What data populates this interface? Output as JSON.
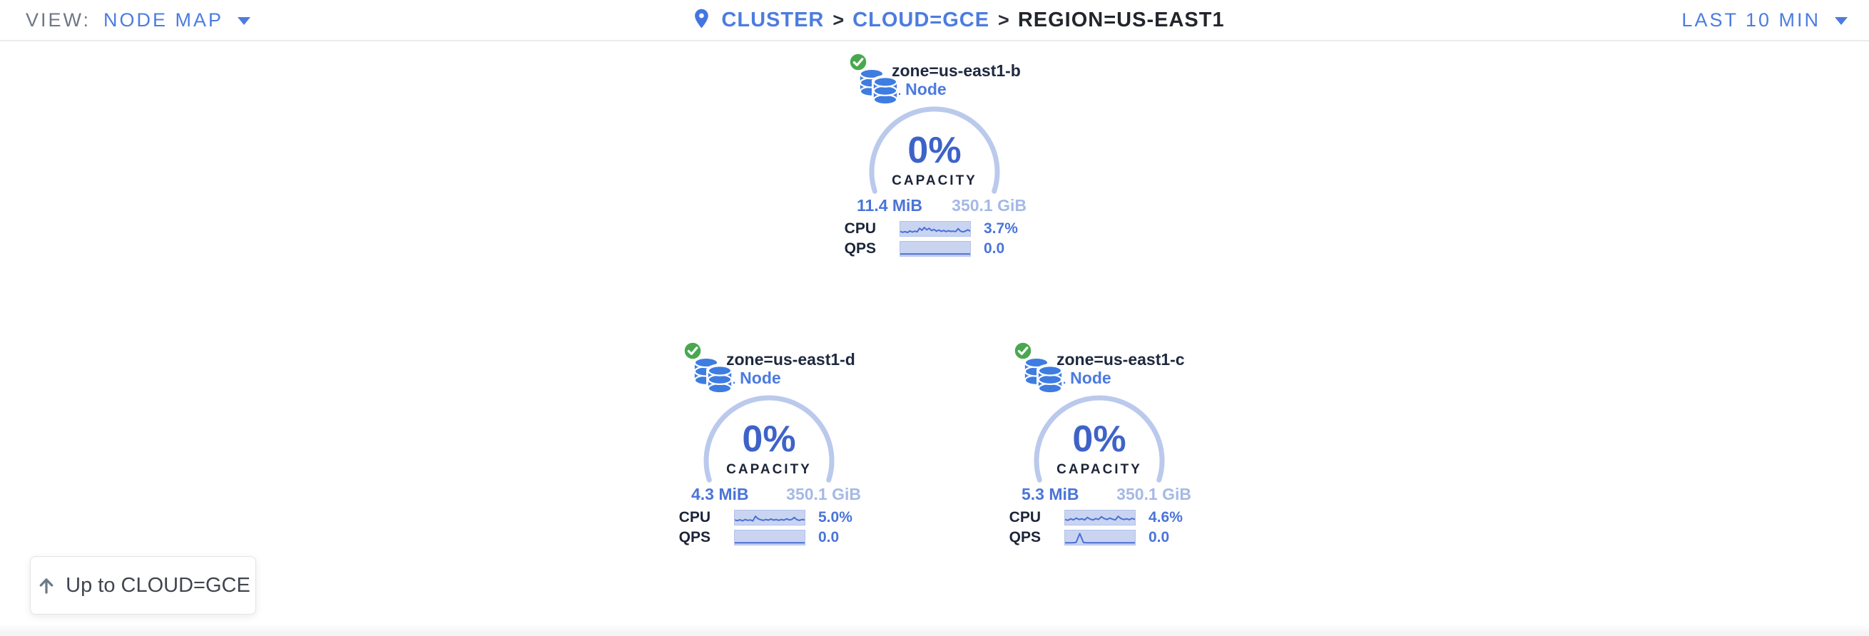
{
  "topbar": {
    "view_label": "VIEW:",
    "view_value": "NODE MAP",
    "breadcrumb": {
      "separator": ">",
      "items": [
        {
          "label": "CLUSTER"
        },
        {
          "label": "CLOUD=GCE"
        },
        {
          "label": "REGION=US-EAST1"
        }
      ]
    },
    "time_range": "LAST 10 MIN"
  },
  "zones": [
    {
      "name": "zone=us-east1-b",
      "node_count": "1 Node",
      "status": "healthy",
      "capacity_pct": "0%",
      "capacity_label": "CAPACITY",
      "capacity_used": "11.4 MiB",
      "capacity_total": "350.1 GiB",
      "cpu_label": "CPU",
      "cpu_value": "3.7%",
      "qps_label": "QPS",
      "qps_value": "0.0",
      "cpu_spark": [
        0.28,
        0.2,
        0.26,
        0.18,
        0.32,
        0.22,
        0.3,
        0.24,
        0.55,
        0.38,
        0.62,
        0.42,
        0.55,
        0.35,
        0.45,
        0.3,
        0.4,
        0.28,
        0.36,
        0.26,
        0.34,
        0.28,
        0.3,
        0.26,
        0.52,
        0.3,
        0.24,
        0.3,
        0.42,
        0.3
      ],
      "qps_spark": [
        0.05,
        0.05,
        0.05,
        0.05,
        0.05,
        0.05,
        0.05,
        0.05,
        0.05,
        0.05
      ]
    },
    {
      "name": "zone=us-east1-d",
      "node_count": "1 Node",
      "status": "healthy",
      "capacity_pct": "0%",
      "capacity_label": "CAPACITY",
      "capacity_used": "4.3 MiB",
      "capacity_total": "350.1 GiB",
      "cpu_label": "CPU",
      "cpu_value": "5.0%",
      "qps_label": "QPS",
      "qps_value": "0.0",
      "cpu_spark": [
        0.3,
        0.24,
        0.32,
        0.22,
        0.34,
        0.26,
        0.3,
        0.22,
        0.62,
        0.4,
        0.32,
        0.26,
        0.34,
        0.28,
        0.38,
        0.28,
        0.34,
        0.26,
        0.34,
        0.28,
        0.4,
        0.3,
        0.34,
        0.52,
        0.32,
        0.26,
        0.34,
        0.3
      ],
      "qps_spark": [
        0.05,
        0.05,
        0.05,
        0.05,
        0.05,
        0.05,
        0.05,
        0.05,
        0.05,
        0.05
      ]
    },
    {
      "name": "zone=us-east1-c",
      "node_count": "1 Node",
      "status": "healthy",
      "capacity_pct": "0%",
      "capacity_label": "CAPACITY",
      "capacity_used": "5.3 MiB",
      "capacity_total": "350.1 GiB",
      "cpu_label": "CPU",
      "cpu_value": "4.6%",
      "qps_label": "QPS",
      "qps_value": "0.0",
      "cpu_spark": [
        0.34,
        0.26,
        0.4,
        0.3,
        0.46,
        0.34,
        0.4,
        0.3,
        0.52,
        0.36,
        0.3,
        0.42,
        0.34,
        0.58,
        0.42,
        0.34,
        0.46,
        0.36,
        0.3,
        0.62,
        0.42,
        0.34,
        0.4,
        0.32,
        0.44,
        0.34
      ],
      "qps_spark": [
        0.05,
        0.05,
        0.05,
        0.08,
        0.85,
        0.07,
        0.05,
        0.05,
        0.05,
        0.05,
        0.05,
        0.05,
        0.05,
        0.05,
        0.05,
        0.05,
        0.05,
        0.05,
        0.05,
        0.05
      ]
    }
  ],
  "up_button": {
    "label": "Up to CLOUD=GCE"
  },
  "colors": {
    "accent_blue": "#4c7ce0",
    "dark_navy": "#1e2940",
    "gauge_arc": "#bac9ec",
    "gauge_pct_blue": "#3e63c8",
    "value_blue": "#4a74d8",
    "light_blue": "#a5b9e6",
    "spark_fill": "#c9d4f1",
    "spark_line": "#4a6fd4",
    "healthy_green": "#49a84f",
    "icon_blue": "#3e7ce1"
  }
}
